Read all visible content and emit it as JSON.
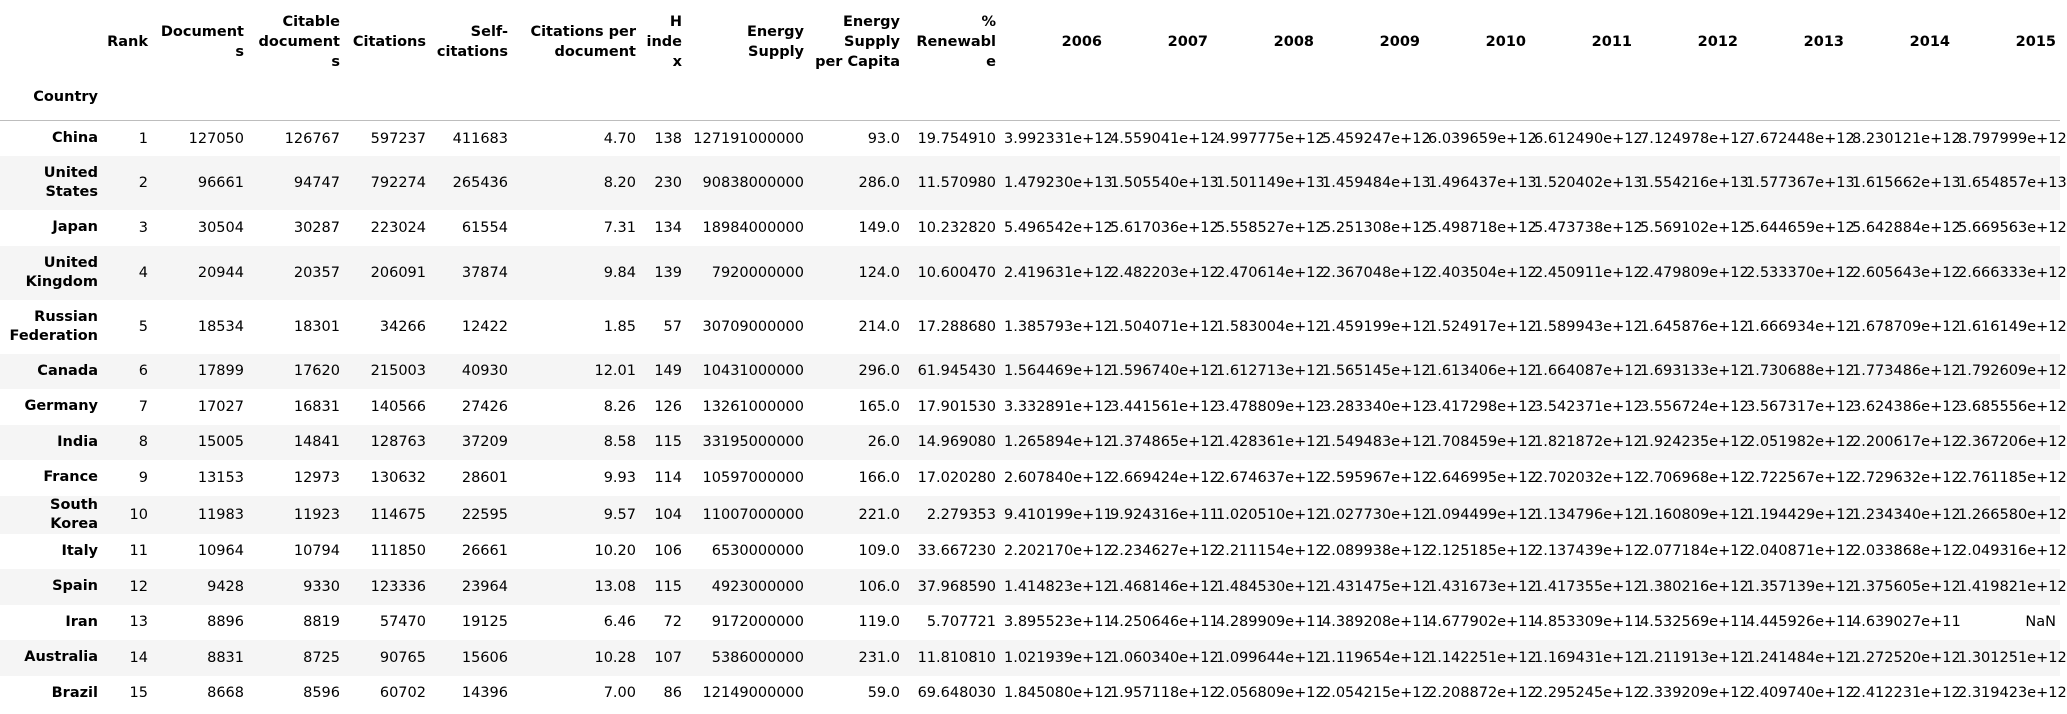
{
  "table": {
    "index_name": "Country",
    "columns": [
      "Rank",
      "Documents",
      "Citable documents",
      "Citations",
      "Self-citations",
      "Citations per document",
      "H index",
      "Energy Supply",
      "Energy Supply per Capita",
      "% Renewable",
      "2006",
      "2007",
      "2008",
      "2009",
      "2010",
      "2011",
      "2012",
      "2013",
      "2014",
      "2015"
    ],
    "rows": [
      {
        "country": "China",
        "cells": [
          "1",
          "127050",
          "126767",
          "597237",
          "411683",
          "4.70",
          "138",
          "127191000000",
          "93.0",
          "19.754910",
          "3.992331e+12",
          "4.559041e+12",
          "4.997775e+12",
          "5.459247e+12",
          "6.039659e+12",
          "6.612490e+12",
          "7.124978e+12",
          "7.672448e+12",
          "8.230121e+12",
          "8.797999e+12"
        ]
      },
      {
        "country": "United States",
        "cells": [
          "2",
          "96661",
          "94747",
          "792274",
          "265436",
          "8.20",
          "230",
          "90838000000",
          "286.0",
          "11.570980",
          "1.479230e+13",
          "1.505540e+13",
          "1.501149e+13",
          "1.459484e+13",
          "1.496437e+13",
          "1.520402e+13",
          "1.554216e+13",
          "1.577367e+13",
          "1.615662e+13",
          "1.654857e+13"
        ]
      },
      {
        "country": "Japan",
        "cells": [
          "3",
          "30504",
          "30287",
          "223024",
          "61554",
          "7.31",
          "134",
          "18984000000",
          "149.0",
          "10.232820",
          "5.496542e+12",
          "5.617036e+12",
          "5.558527e+12",
          "5.251308e+12",
          "5.498718e+12",
          "5.473738e+12",
          "5.569102e+12",
          "5.644659e+12",
          "5.642884e+12",
          "5.669563e+12"
        ]
      },
      {
        "country": "United Kingdom",
        "cells": [
          "4",
          "20944",
          "20357",
          "206091",
          "37874",
          "9.84",
          "139",
          "7920000000",
          "124.0",
          "10.600470",
          "2.419631e+12",
          "2.482203e+12",
          "2.470614e+12",
          "2.367048e+12",
          "2.403504e+12",
          "2.450911e+12",
          "2.479809e+12",
          "2.533370e+12",
          "2.605643e+12",
          "2.666333e+12"
        ]
      },
      {
        "country": "Russian Federation",
        "cells": [
          "5",
          "18534",
          "18301",
          "34266",
          "12422",
          "1.85",
          "57",
          "30709000000",
          "214.0",
          "17.288680",
          "1.385793e+12",
          "1.504071e+12",
          "1.583004e+12",
          "1.459199e+12",
          "1.524917e+12",
          "1.589943e+12",
          "1.645876e+12",
          "1.666934e+12",
          "1.678709e+12",
          "1.616149e+12"
        ]
      },
      {
        "country": "Canada",
        "cells": [
          "6",
          "17899",
          "17620",
          "215003",
          "40930",
          "12.01",
          "149",
          "10431000000",
          "296.0",
          "61.945430",
          "1.564469e+12",
          "1.596740e+12",
          "1.612713e+12",
          "1.565145e+12",
          "1.613406e+12",
          "1.664087e+12",
          "1.693133e+12",
          "1.730688e+12",
          "1.773486e+12",
          "1.792609e+12"
        ]
      },
      {
        "country": "Germany",
        "cells": [
          "7",
          "17027",
          "16831",
          "140566",
          "27426",
          "8.26",
          "126",
          "13261000000",
          "165.0",
          "17.901530",
          "3.332891e+12",
          "3.441561e+12",
          "3.478809e+12",
          "3.283340e+12",
          "3.417298e+12",
          "3.542371e+12",
          "3.556724e+12",
          "3.567317e+12",
          "3.624386e+12",
          "3.685556e+12"
        ]
      },
      {
        "country": "India",
        "cells": [
          "8",
          "15005",
          "14841",
          "128763",
          "37209",
          "8.58",
          "115",
          "33195000000",
          "26.0",
          "14.969080",
          "1.265894e+12",
          "1.374865e+12",
          "1.428361e+12",
          "1.549483e+12",
          "1.708459e+12",
          "1.821872e+12",
          "1.924235e+12",
          "2.051982e+12",
          "2.200617e+12",
          "2.367206e+12"
        ]
      },
      {
        "country": "France",
        "cells": [
          "9",
          "13153",
          "12973",
          "130632",
          "28601",
          "9.93",
          "114",
          "10597000000",
          "166.0",
          "17.020280",
          "2.607840e+12",
          "2.669424e+12",
          "2.674637e+12",
          "2.595967e+12",
          "2.646995e+12",
          "2.702032e+12",
          "2.706968e+12",
          "2.722567e+12",
          "2.729632e+12",
          "2.761185e+12"
        ]
      },
      {
        "country": "South Korea",
        "cells": [
          "10",
          "11983",
          "11923",
          "114675",
          "22595",
          "9.57",
          "104",
          "11007000000",
          "221.0",
          "2.279353",
          "9.410199e+11",
          "9.924316e+11",
          "1.020510e+12",
          "1.027730e+12",
          "1.094499e+12",
          "1.134796e+12",
          "1.160809e+12",
          "1.194429e+12",
          "1.234340e+12",
          "1.266580e+12"
        ]
      },
      {
        "country": "Italy",
        "cells": [
          "11",
          "10964",
          "10794",
          "111850",
          "26661",
          "10.20",
          "106",
          "6530000000",
          "109.0",
          "33.667230",
          "2.202170e+12",
          "2.234627e+12",
          "2.211154e+12",
          "2.089938e+12",
          "2.125185e+12",
          "2.137439e+12",
          "2.077184e+12",
          "2.040871e+12",
          "2.033868e+12",
          "2.049316e+12"
        ]
      },
      {
        "country": "Spain",
        "cells": [
          "12",
          "9428",
          "9330",
          "123336",
          "23964",
          "13.08",
          "115",
          "4923000000",
          "106.0",
          "37.968590",
          "1.414823e+12",
          "1.468146e+12",
          "1.484530e+12",
          "1.431475e+12",
          "1.431673e+12",
          "1.417355e+12",
          "1.380216e+12",
          "1.357139e+12",
          "1.375605e+12",
          "1.419821e+12"
        ]
      },
      {
        "country": "Iran",
        "cells": [
          "13",
          "8896",
          "8819",
          "57470",
          "19125",
          "6.46",
          "72",
          "9172000000",
          "119.0",
          "5.707721",
          "3.895523e+11",
          "4.250646e+11",
          "4.289909e+11",
          "4.389208e+11",
          "4.677902e+11",
          "4.853309e+11",
          "4.532569e+11",
          "4.445926e+11",
          "4.639027e+11",
          "NaN"
        ]
      },
      {
        "country": "Australia",
        "cells": [
          "14",
          "8831",
          "8725",
          "90765",
          "15606",
          "10.28",
          "107",
          "5386000000",
          "231.0",
          "11.810810",
          "1.021939e+12",
          "1.060340e+12",
          "1.099644e+12",
          "1.119654e+12",
          "1.142251e+12",
          "1.169431e+12",
          "1.211913e+12",
          "1.241484e+12",
          "1.272520e+12",
          "1.301251e+12"
        ]
      },
      {
        "country": "Brazil",
        "cells": [
          "15",
          "8668",
          "8596",
          "60702",
          "14396",
          "7.00",
          "86",
          "12149000000",
          "59.0",
          "69.648030",
          "1.845080e+12",
          "1.957118e+12",
          "2.056809e+12",
          "2.054215e+12",
          "2.208872e+12",
          "2.295245e+12",
          "2.339209e+12",
          "2.409740e+12",
          "2.412231e+12",
          "2.319423e+12"
        ]
      }
    ]
  }
}
